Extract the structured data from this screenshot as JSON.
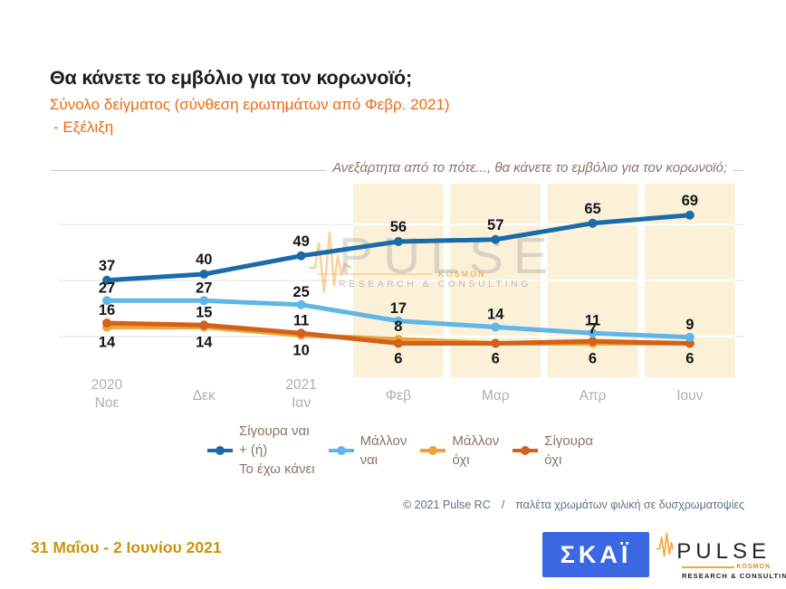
{
  "header": {
    "title": "Θα κάνετε το εμβόλιο για τον κορωνοϊό;",
    "subtitle": "Σύνολο δείγματος (σύνθεση ερωτημάτων από Φεβρ. 2021)",
    "subtitle_line2": "- Εξέλιξη"
  },
  "chart_data": {
    "type": "line",
    "title_annotation": "Ανεξάρτητα από το πότε..., θα κάνετε το εμβόλιο για τον κορωνοϊό;",
    "categories": [
      [
        "2020",
        "Νοε"
      ],
      [
        "Δεκ"
      ],
      [
        "2021",
        "Ιαν"
      ],
      [
        "Φεβ"
      ],
      [
        "Μαρ"
      ],
      [
        "Απρ"
      ],
      [
        "Ιουν"
      ]
    ],
    "series": [
      {
        "name": "Σίγουρα ναι + (ή) Το έχω κάνει",
        "color": "#1A6BA8",
        "values": [
          37,
          40,
          49,
          56,
          57,
          65,
          69
        ]
      },
      {
        "name": "Μάλλον ναι",
        "color": "#5FB6E7",
        "values": [
          27,
          27,
          25,
          17,
          14,
          11,
          9
        ]
      },
      {
        "name": "Μάλλον όχι",
        "color": "#EDA338",
        "values": [
          14,
          14,
          10,
          8,
          6,
          6,
          6
        ]
      },
      {
        "name": "Σίγουρα όχι",
        "color": "#D2611B",
        "values": [
          16,
          15,
          11,
          6,
          6,
          7,
          6
        ]
      }
    ],
    "ylim": [
      0,
      90
    ],
    "grid": "horizontal-faint",
    "legend_position": "bottom",
    "highlight": {
      "from_index": 3,
      "color": "#FBF1D9"
    }
  },
  "legend": {
    "items": [
      {
        "lines": [
          "Σίγουρα ναι",
          "+ (ή)",
          "Το έχω κάνει"
        ]
      },
      {
        "lines": [
          "Μάλλον",
          "ναι"
        ]
      },
      {
        "lines": [
          "Μάλλον",
          "όχι"
        ]
      },
      {
        "lines": [
          "Σίγουρα",
          "όχι"
        ]
      }
    ]
  },
  "watermark": {
    "brand": "PULSE",
    "tag": "KOSMON",
    "sub": "RESEARCH & CONSULTING"
  },
  "footer": {
    "copyright": "© 2021 Pulse RC",
    "separator": "/",
    "note": "παλέτα χρωμάτων φιλική σε δυσχρωματοψίες"
  },
  "bottom": {
    "date_range": "31 Μαΐου - 2 Ιουνίου 2021",
    "skai_logo_text": "ΣΚΑΪ",
    "pulse_logo_text": "PULSE",
    "pulse_logo_tag": "KOSMON",
    "pulse_logo_sub": "RESEARCH & CONSULTING"
  }
}
